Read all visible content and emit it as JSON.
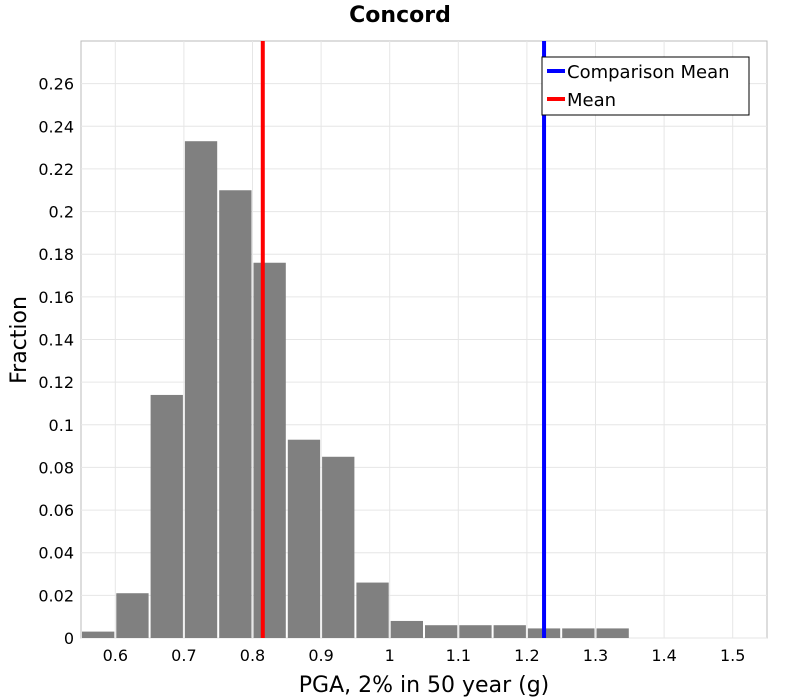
{
  "chart_data": {
    "type": "bar",
    "title": "Concord",
    "xlabel": "PGA, 2% in 50 year (g)",
    "ylabel": "Fraction",
    "xlim": [
      0.55,
      1.55
    ],
    "ylim": [
      0,
      0.28
    ],
    "xticks": [
      0.6,
      0.7,
      0.8,
      0.9,
      1.0,
      1.1,
      1.2,
      1.3,
      1.4,
      1.5
    ],
    "xtick_labels": [
      "0.6",
      "0.7",
      "0.8",
      "0.9",
      "1",
      "1.1",
      "1.2",
      "1.3",
      "1.4",
      "1.5"
    ],
    "yticks": [
      0,
      0.02,
      0.04,
      0.06,
      0.08,
      0.1,
      0.12,
      0.14,
      0.16,
      0.18,
      0.2,
      0.22,
      0.24,
      0.26
    ],
    "ytick_labels": [
      "0",
      "0.02",
      "0.04",
      "0.06",
      "0.08",
      "0.1",
      "0.12",
      "0.14",
      "0.16",
      "0.18",
      "0.2",
      "0.22",
      "0.24",
      "0.26"
    ],
    "bin_width": 0.05,
    "bin_centers": [
      0.575,
      0.625,
      0.675,
      0.725,
      0.775,
      0.825,
      0.875,
      0.925,
      0.975,
      1.025,
      1.075,
      1.125,
      1.175,
      1.225,
      1.275,
      1.325
    ],
    "values": [
      0.003,
      0.021,
      0.114,
      0.233,
      0.21,
      0.176,
      0.093,
      0.085,
      0.026,
      0.008,
      0.006,
      0.006,
      0.006,
      0.0045,
      0.0045,
      0.0045
    ],
    "bar_color": "#808080",
    "vlines": [
      {
        "name": "Comparison Mean",
        "x": 1.225,
        "color": "#0000ff"
      },
      {
        "name": "Mean",
        "x": 0.815,
        "color": "#ff0000"
      }
    ],
    "legend": [
      "Comparison Mean",
      "Mean"
    ],
    "legend_position": "top-right",
    "grid": true
  }
}
